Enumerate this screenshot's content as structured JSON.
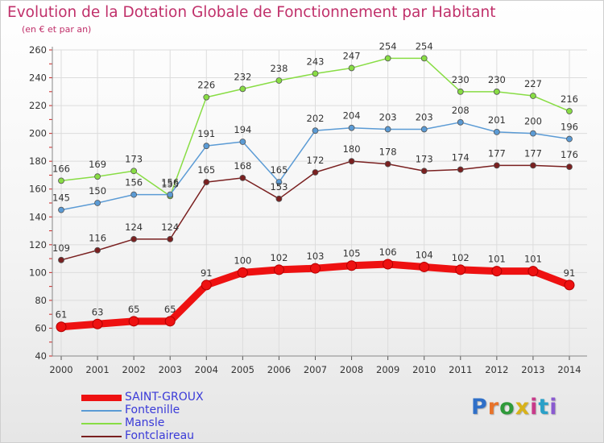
{
  "title": "Evolution de la Dotation Globale de Fonctionnement par Habitant",
  "subtitle": "(en € et par an)",
  "logo_text": "Proxiti",
  "chart_data": {
    "type": "line",
    "title": "Evolution de la Dotation Globale de Fonctionnement par Habitant",
    "subtitle": "(en € et par an)",
    "categories": [
      "2000",
      "2001",
      "2002",
      "2003",
      "2004",
      "2005",
      "2006",
      "2007",
      "2008",
      "2009",
      "2010",
      "2011",
      "2012",
      "2013",
      "2014"
    ],
    "ylim": [
      40,
      260
    ],
    "yticks": [
      40,
      60,
      80,
      100,
      120,
      140,
      160,
      180,
      200,
      220,
      240,
      260
    ],
    "grid": true,
    "legend_position": "bottom-left",
    "series": [
      {
        "name": "SAINT-GROUX",
        "color": "#ee1111",
        "values": [
          61,
          63,
          65,
          65,
          91,
          100,
          102,
          103,
          105,
          106,
          104,
          102,
          101,
          101,
          91
        ]
      },
      {
        "name": "Fontenille",
        "color": "#5b9bd5",
        "values": [
          145,
          150,
          156,
          156,
          191,
          194,
          165,
          202,
          204,
          203,
          203,
          208,
          201,
          200,
          196
        ]
      },
      {
        "name": "Mansle",
        "color": "#88dd44",
        "values": [
          166,
          169,
          173,
          155,
          226,
          232,
          238,
          243,
          247,
          254,
          254,
          230,
          230,
          227,
          216
        ]
      },
      {
        "name": "Fontclaireau",
        "color": "#7a2020",
        "values": [
          109,
          116,
          124,
          124,
          165,
          168,
          153,
          172,
          180,
          178,
          173,
          174,
          177,
          177,
          176
        ]
      }
    ]
  }
}
